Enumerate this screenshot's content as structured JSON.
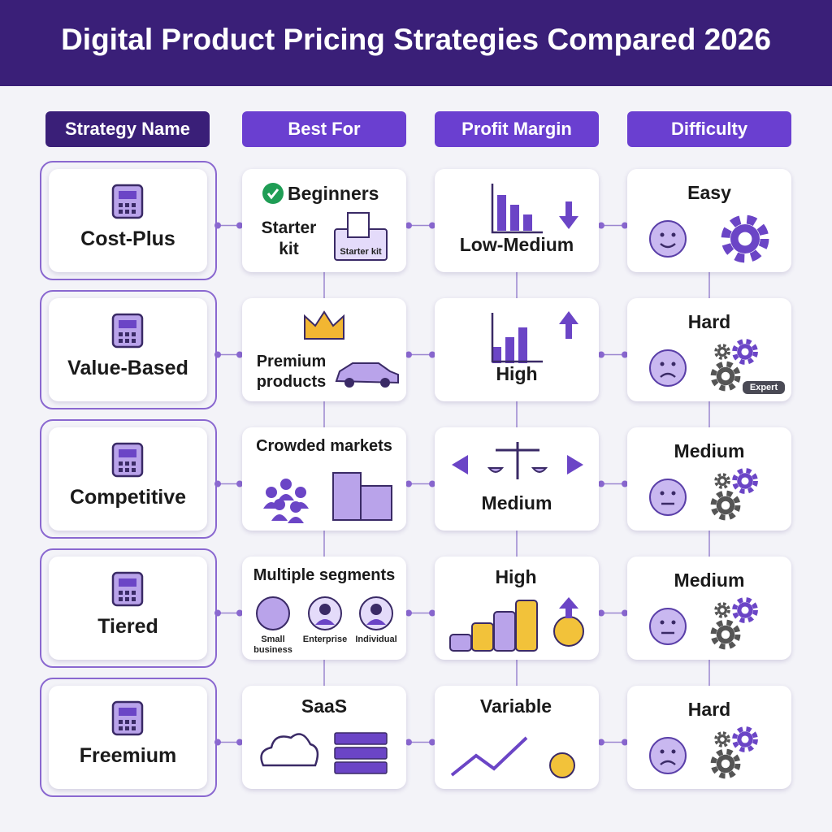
{
  "header": {
    "title": "Digital Product Pricing Strategies Compared 2026"
  },
  "table": {
    "columns": [
      "Strategy Name",
      "Best For",
      "Profit Margin",
      "Difficulty"
    ],
    "rows": [
      {
        "strategy": "Cost-Plus",
        "best_for": "Beginners",
        "best_for_note": "Starter\nkit",
        "best_for_tags": [
          "Starter kit"
        ],
        "margin": "Low-Medium",
        "difficulty": "Easy"
      },
      {
        "strategy": "Value-Based",
        "best_for": "Premium\nproducts",
        "margin": "High",
        "difficulty": "Hard",
        "difficulty_tags": [
          "Expert"
        ]
      },
      {
        "strategy": "Competitive",
        "best_for": "Crowded markets",
        "margin": "Medium",
        "difficulty": "Medium"
      },
      {
        "strategy": "Tiered",
        "best_for": "Multiple segments",
        "best_for_tags": [
          "Small\nbusiness",
          "Enterprise",
          "Individual"
        ],
        "margin": "High",
        "difficulty": "Medium"
      },
      {
        "strategy": "Freemium",
        "best_for": "SaaS",
        "margin": "Variable",
        "difficulty": "Hard"
      }
    ]
  }
}
